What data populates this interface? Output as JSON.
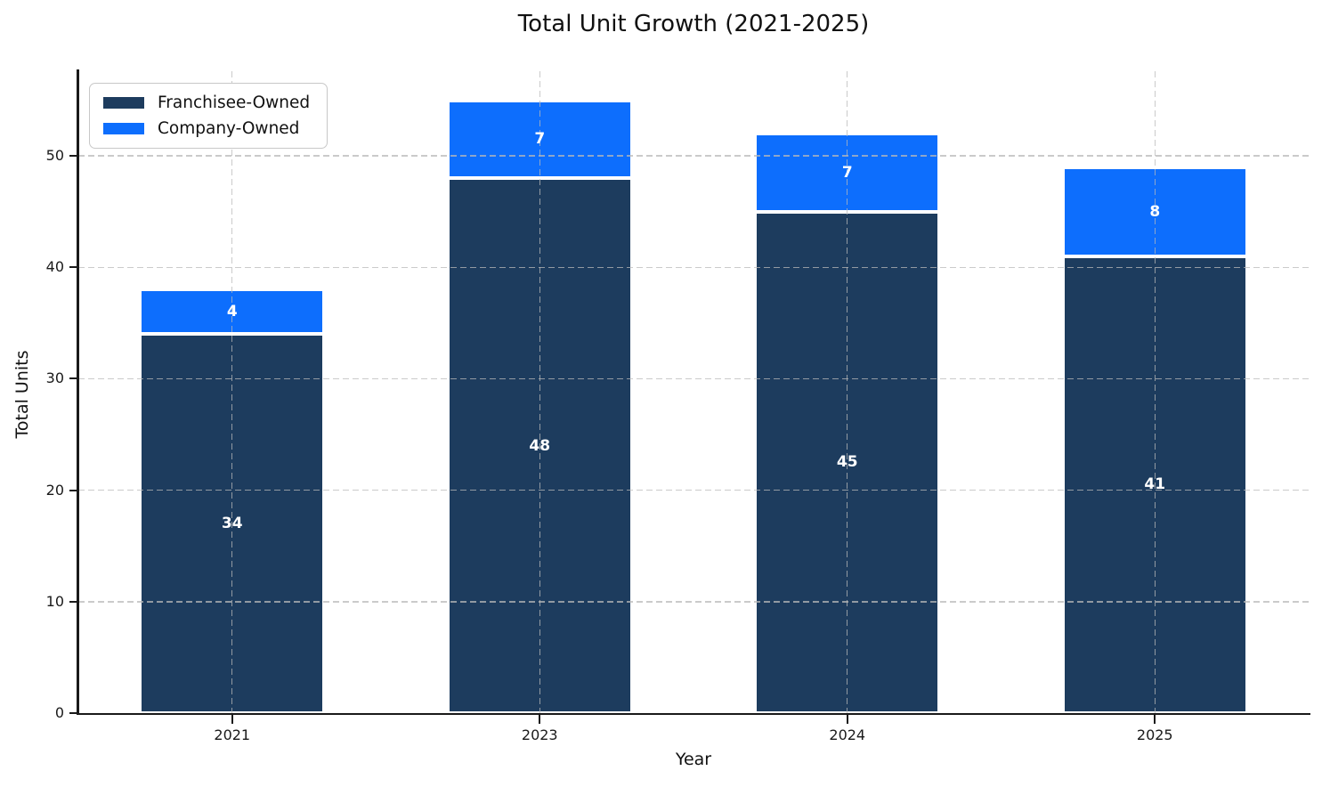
{
  "chart_data": {
    "type": "bar",
    "stacked": true,
    "title": "Total Unit Growth (2021-2025)",
    "xlabel": "Year",
    "ylabel": "Total Units",
    "categories": [
      "2021",
      "2023",
      "2024",
      "2025"
    ],
    "series": [
      {
        "name": "Franchisee-Owned",
        "values": [
          34,
          48,
          45,
          41
        ],
        "color": "#1d3c5e"
      },
      {
        "name": "Company-Owned",
        "values": [
          4,
          7,
          7,
          8
        ],
        "color": "#0d6efd"
      }
    ],
    "bar_labels_shown": true,
    "bar_label_color": "#ffffff",
    "bar_edge_color": "#ffffff",
    "yticks": [
      0,
      10,
      20,
      30,
      40,
      50
    ],
    "ylim": [
      0,
      57.6
    ],
    "legend_position": "upper left",
    "grid": {
      "style": "dashed",
      "color": "#b9b9b9",
      "horizontal": true,
      "vertical": true,
      "drawn_over_bars": true
    },
    "background_color": "#ffffff"
  }
}
